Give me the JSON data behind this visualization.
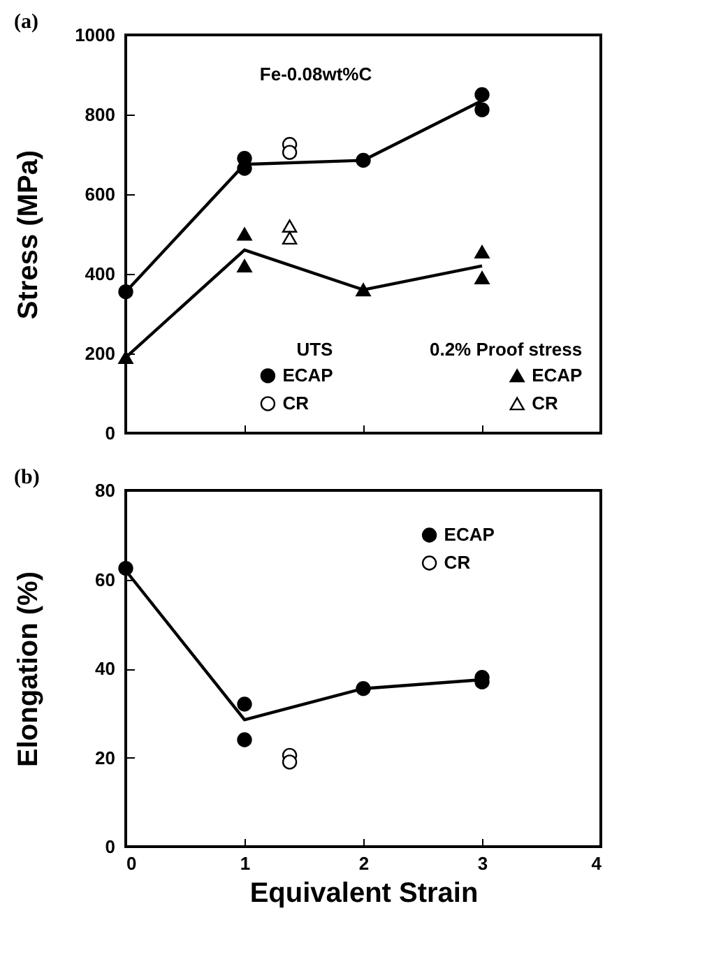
{
  "chart_data": [
    {
      "type": "scatter",
      "title": "(a)",
      "ylabel": "Stress (MPa)",
      "xlim": [
        0,
        4
      ],
      "xticks": [
        0,
        1,
        2,
        3,
        4
      ],
      "ylim": [
        0,
        1000
      ],
      "yticks": [
        0,
        200,
        400,
        600,
        800,
        1000
      ],
      "tick_labels": "y",
      "grid": false,
      "legend": "bottom",
      "annotations": [
        "Fe-0.08wt%C",
        "UTS",
        "0.2% Proof stress"
      ],
      "series": [
        {
          "name": "ECAP",
          "type": "scatter",
          "marker": "circle",
          "color": "#000000",
          "x": [
            0,
            1,
            1,
            2,
            3,
            3
          ],
          "values": [
            355,
            690,
            665,
            685,
            850,
            812
          ]
        },
        {
          "name": "CR",
          "type": "scatter",
          "marker": "circle",
          "color": "#ffffff",
          "x": [
            1.38,
            1.38
          ],
          "values": [
            725,
            705
          ]
        },
        {
          "name": "ECAP",
          "type": "scatter",
          "marker": "triangle",
          "color": "#000000",
          "x": [
            0,
            1,
            1,
            2,
            3,
            3
          ],
          "values": [
            190,
            500,
            420,
            360,
            455,
            390
          ]
        },
        {
          "name": "CR",
          "type": "scatter",
          "marker": "triangle",
          "color": "#ffffff",
          "x": [
            1.38,
            1.38
          ],
          "values": [
            520,
            490
          ]
        },
        {
          "type": "line",
          "marker": "none",
          "color": "#000000",
          "x": [
            0,
            1,
            2,
            3
          ],
          "values": [
            355,
            675,
            685,
            835
          ]
        },
        {
          "type": "line",
          "marker": "none",
          "color": "#000000",
          "x": [
            0,
            1,
            2,
            3
          ],
          "values": [
            190,
            460,
            360,
            420
          ]
        }
      ]
    },
    {
      "type": "scatter",
      "title": "(b)",
      "xlabel": "Equivalent Strain",
      "ylabel": "Elongation (%)",
      "xlim": [
        0,
        4
      ],
      "xticks": [
        0,
        1,
        2,
        3,
        4
      ],
      "ylim": [
        0,
        80
      ],
      "yticks": [
        0,
        20,
        40,
        60,
        80
      ],
      "grid": false,
      "legend": "top right",
      "series": [
        {
          "name": "ECAP",
          "type": "scatter",
          "marker": "circle",
          "color": "#000000",
          "x": [
            0,
            1,
            1,
            2,
            3,
            3
          ],
          "values": [
            62.5,
            32,
            24,
            35.5,
            38,
            37
          ]
        },
        {
          "name": "CR",
          "type": "scatter",
          "marker": "circle",
          "color": "#ffffff",
          "x": [
            1.38,
            1.38
          ],
          "values": [
            20.5,
            19
          ]
        },
        {
          "type": "line",
          "marker": "none",
          "color": "#000000",
          "x": [
            0,
            1,
            2,
            3
          ],
          "values": [
            62,
            28.5,
            35.5,
            37.5
          ]
        }
      ]
    }
  ]
}
